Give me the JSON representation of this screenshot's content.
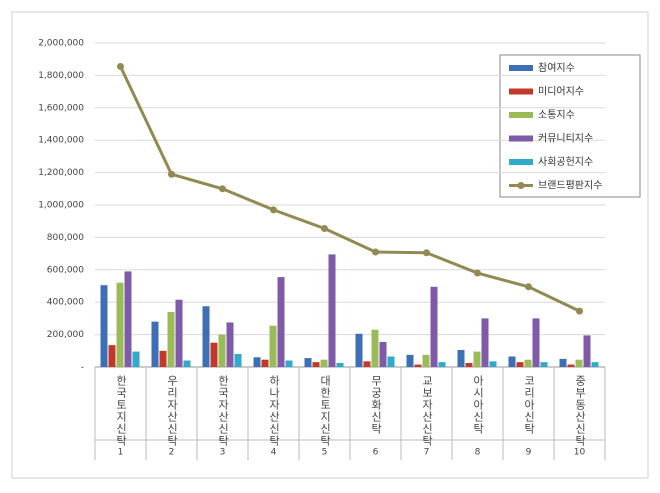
{
  "chart_data": {
    "type": "bar",
    "categories": [
      "한국토지신탁",
      "우리자산신탁",
      "한국자산신탁",
      "하나자산신탁",
      "대한토지신탁",
      "무궁화신탁",
      "교보자산신탁",
      "아시아신탁",
      "코리아신탁",
      "중부동산신탁"
    ],
    "category_numbers": [
      "1",
      "2",
      "3",
      "4",
      "5",
      "6",
      "7",
      "8",
      "9",
      "10"
    ],
    "series": [
      {
        "name": "참여지수",
        "type": "bar",
        "color": "#3d6fb6",
        "values": [
          505000,
          280000,
          375000,
          60000,
          55000,
          205000,
          75000,
          105000,
          65000,
          50000
        ]
      },
      {
        "name": "미디어지수",
        "type": "bar",
        "color": "#c0392b",
        "values": [
          135000,
          100000,
          150000,
          45000,
          30000,
          35000,
          15000,
          25000,
          30000,
          15000
        ]
      },
      {
        "name": "소통지수",
        "type": "bar",
        "color": "#9bbb59",
        "values": [
          520000,
          340000,
          200000,
          255000,
          45000,
          230000,
          75000,
          95000,
          45000,
          45000
        ]
      },
      {
        "name": "커뮤니티지수",
        "type": "bar",
        "color": "#7f5aa8",
        "values": [
          590000,
          415000,
          275000,
          555000,
          695000,
          155000,
          495000,
          300000,
          300000,
          195000
        ]
      },
      {
        "name": "사회공헌지수",
        "type": "bar",
        "color": "#31a9c8",
        "values": [
          95000,
          40000,
          80000,
          40000,
          25000,
          65000,
          30000,
          35000,
          30000,
          30000
        ]
      },
      {
        "name": "브랜드평판지수",
        "type": "line",
        "color": "#938953",
        "values": [
          1855000,
          1190000,
          1100000,
          970000,
          855000,
          710000,
          705000,
          580000,
          495000,
          345000
        ]
      }
    ],
    "ylim": [
      0,
      2000000
    ],
    "yticks": [
      {
        "value": 0,
        "label": "-"
      },
      {
        "value": 200000,
        "label": "200,000"
      },
      {
        "value": 400000,
        "label": "400,000"
      },
      {
        "value": 600000,
        "label": "600,000"
      },
      {
        "value": 800000,
        "label": "800,000"
      },
      {
        "value": 1000000,
        "label": "1,000,000"
      },
      {
        "value": 1200000,
        "label": "1,200,000"
      },
      {
        "value": 1400000,
        "label": "1,400,000"
      },
      {
        "value": 1600000,
        "label": "1,600,000"
      },
      {
        "value": 1800000,
        "label": "1,800,000"
      },
      {
        "value": 2000000,
        "label": "2,000,000"
      }
    ],
    "grid": true
  }
}
